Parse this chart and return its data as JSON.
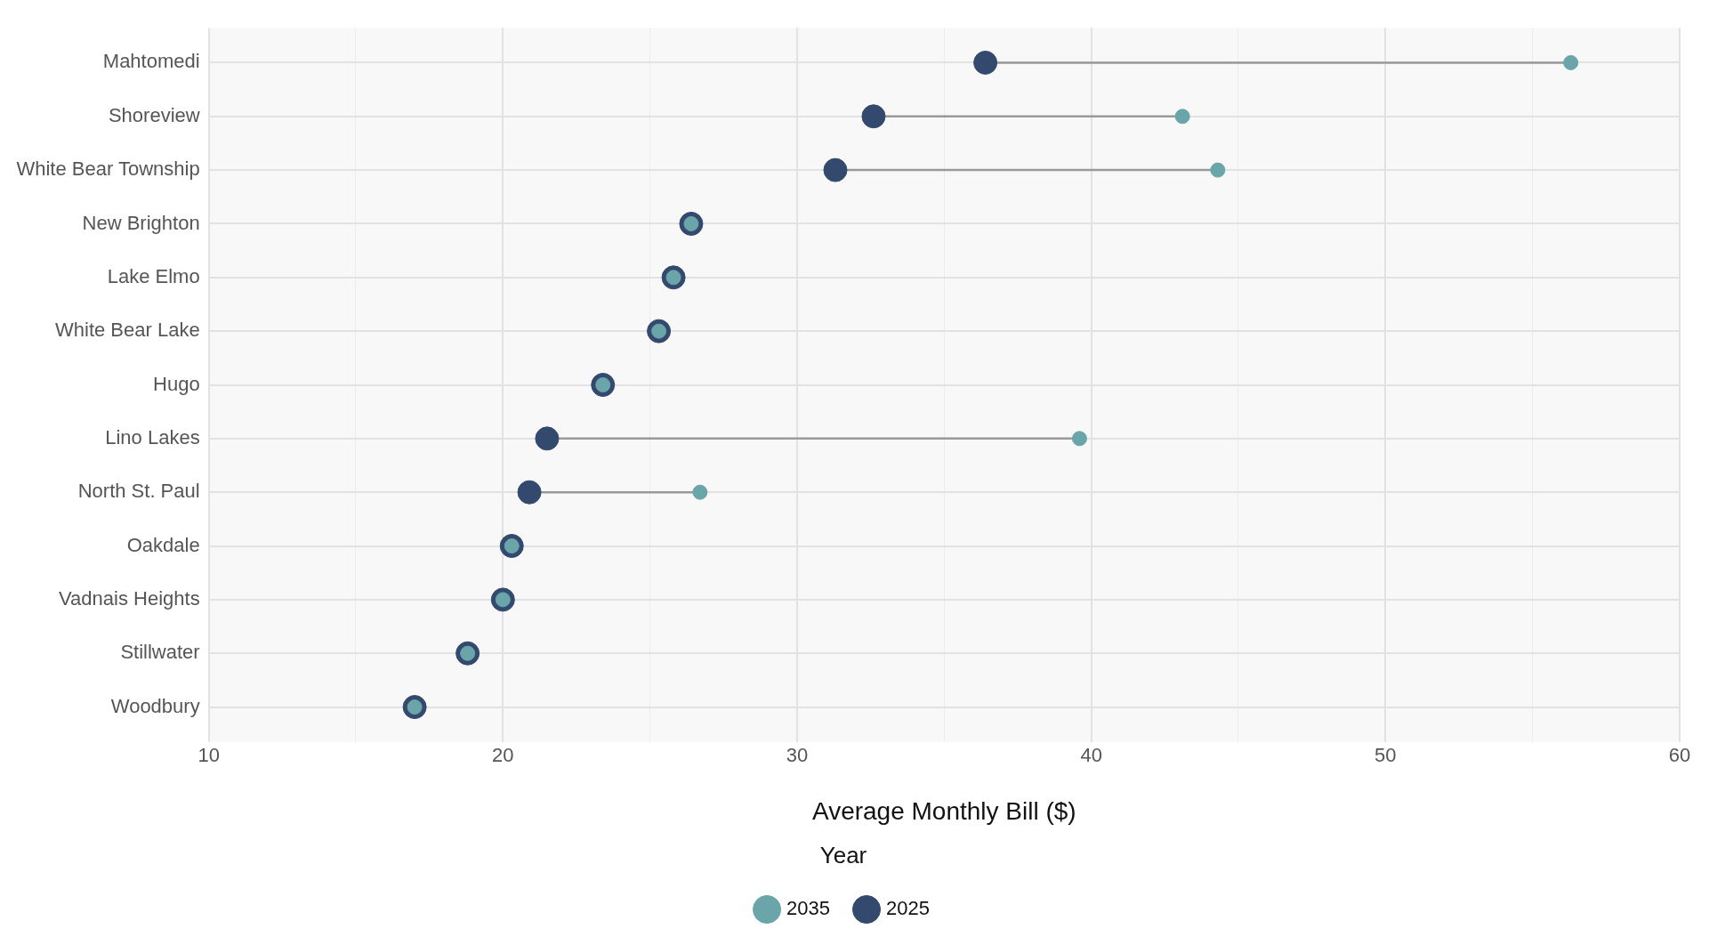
{
  "chart_data": {
    "type": "scatter",
    "orientation": "horizontal",
    "xlabel": "Average Monthly Bill ($)",
    "legend_title": "Year",
    "legend": "bottom",
    "grid": true,
    "marker": "circle",
    "categories": [
      "Mahtomedi",
      "Shoreview",
      "White Bear Township",
      "New Brighton",
      "Lake Elmo",
      "White Bear Lake",
      "Hugo",
      "Lino Lakes",
      "North St. Paul",
      "Oakdale",
      "Vadnais Heights",
      "Stillwater",
      "Woodbury"
    ],
    "xlim": [
      10,
      60
    ],
    "xticks": [
      10,
      {
        "value": 15,
        "label": null
      },
      20,
      {
        "value": 25,
        "label": null
      },
      30,
      {
        "value": 35,
        "label": null
      },
      40,
      {
        "value": 45,
        "label": null
      },
      50,
      {
        "value": 55,
        "label": null
      },
      60
    ],
    "series": [
      {
        "name": "2025",
        "color": "#34496e",
        "values": [
          36.4,
          32.6,
          31.3,
          26.4,
          25.8,
          25.3,
          23.4,
          21.5,
          20.9,
          20.3,
          20.0,
          18.8,
          17.0
        ]
      },
      {
        "name": "2035",
        "color": "#6aa5a9",
        "values": [
          56.3,
          43.1,
          44.3,
          26.4,
          25.8,
          25.3,
          23.4,
          39.6,
          26.7,
          20.3,
          20.0,
          18.8,
          17.0
        ]
      }
    ]
  }
}
